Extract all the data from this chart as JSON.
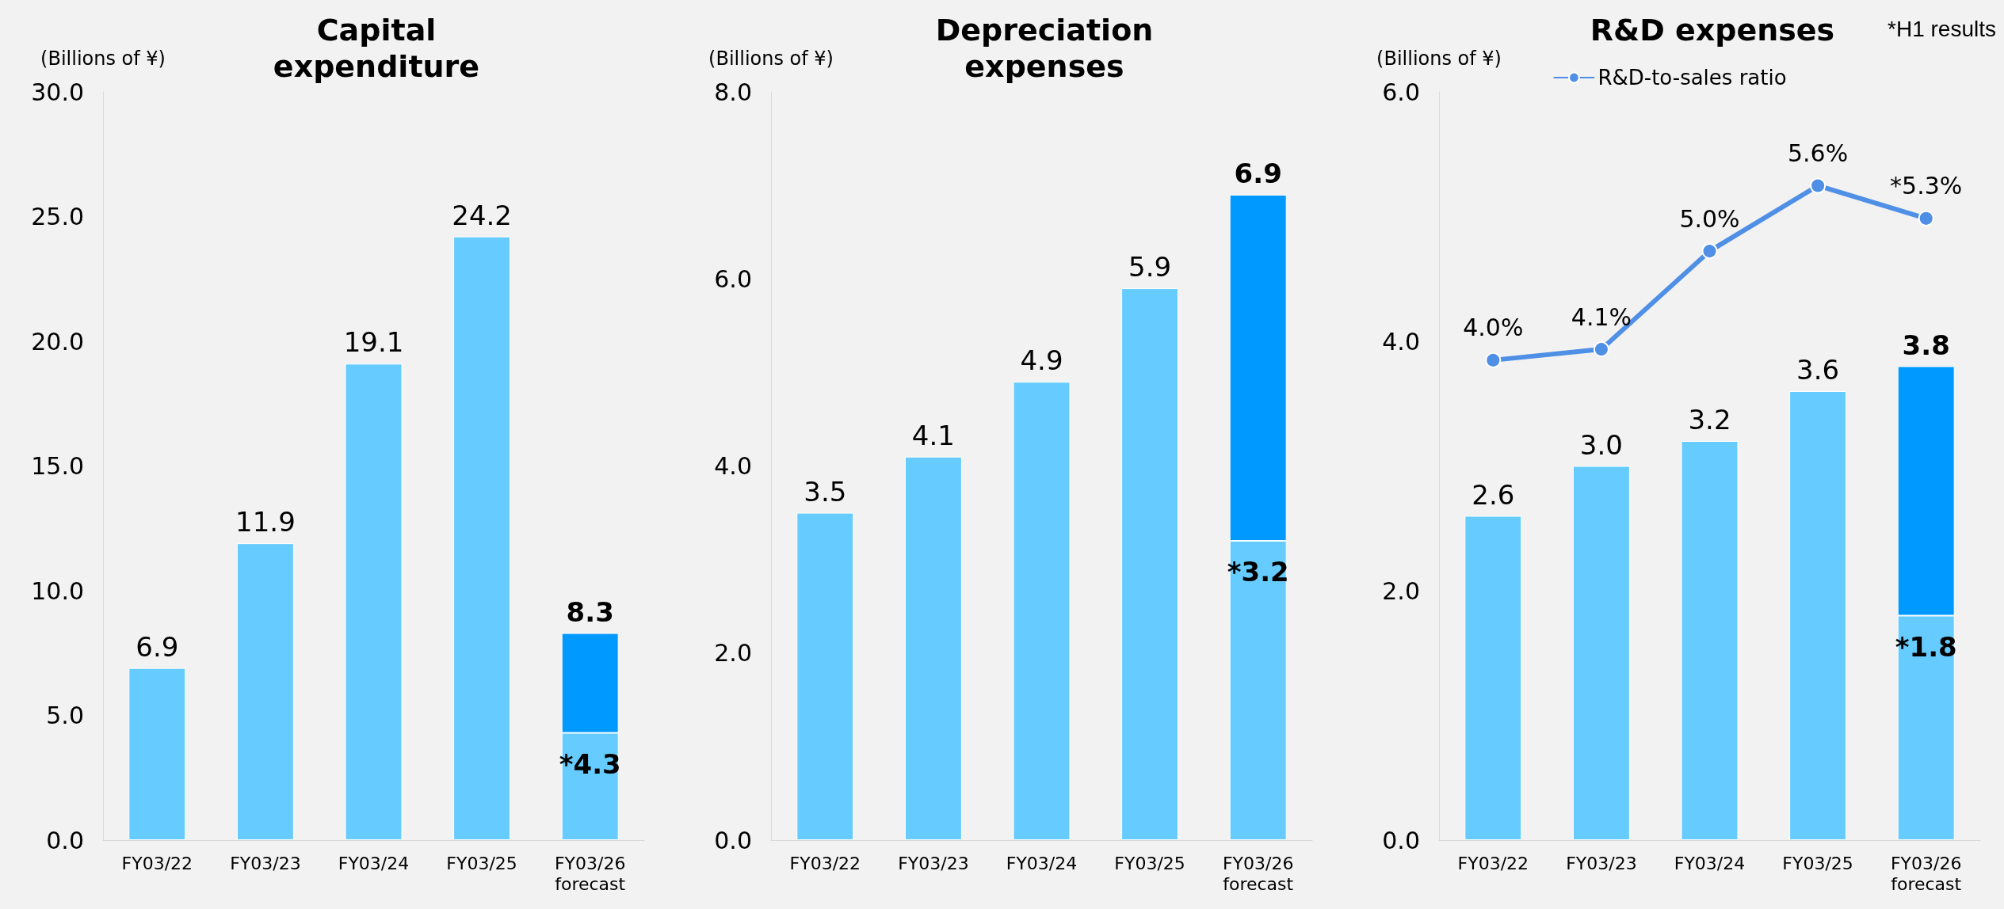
{
  "chart_data": [
    {
      "type": "bar",
      "title": "Capital\nexpenditure",
      "ylabel": "(Billions of ¥)",
      "categories": [
        "FY03/22",
        "FY03/23",
        "FY03/24",
        "FY03/25",
        "FY03/26\nforecast"
      ],
      "ylim": [
        0,
        30
      ],
      "yticks": [
        {
          "value": 0,
          "label": "0.0"
        },
        {
          "value": 5,
          "label": "5.0"
        },
        {
          "value": 10,
          "label": "10.0"
        },
        {
          "value": 15,
          "label": "15.0"
        },
        {
          "value": 20,
          "label": "20.0"
        },
        {
          "value": 25,
          "label": "25.0"
        },
        {
          "value": 30,
          "label": "30.0"
        }
      ],
      "stacked": true,
      "series": [
        {
          "color": "#66ccff",
          "values": [
            6.9,
            11.9,
            19.1,
            24.2,
            4.3
          ],
          "value_labels": [
            "6.9",
            "11.9",
            "19.1",
            "24.2",
            "*4.3"
          ]
        },
        {
          "color": "#0099ff",
          "values": [
            null,
            null,
            null,
            null,
            4.0
          ]
        }
      ],
      "totals": [
        null,
        null,
        null,
        null,
        "8.3"
      ]
    },
    {
      "type": "bar",
      "title": "Depreciation\nexpenses",
      "ylabel": "(Billions of ¥)",
      "categories": [
        "FY03/22",
        "FY03/23",
        "FY03/24",
        "FY03/25",
        "FY03/26\nforecast"
      ],
      "ylim": [
        0,
        8
      ],
      "yticks": [
        {
          "value": 0,
          "label": "0.0"
        },
        {
          "value": 2,
          "label": "2.0"
        },
        {
          "value": 4,
          "label": "4.0"
        },
        {
          "value": 6,
          "label": "6.0"
        },
        {
          "value": 8,
          "label": "8.0"
        }
      ],
      "stacked": true,
      "series": [
        {
          "color": "#66ccff",
          "values": [
            3.5,
            4.1,
            4.9,
            5.9,
            3.2
          ],
          "value_labels": [
            "3.5",
            "4.1",
            "4.9",
            "5.9",
            "*3.2"
          ]
        },
        {
          "color": "#0099ff",
          "values": [
            null,
            null,
            null,
            null,
            3.7
          ]
        }
      ],
      "totals": [
        null,
        null,
        null,
        null,
        "6.9"
      ]
    },
    {
      "type": "bar",
      "title": "R&D expenses",
      "ylabel": "(Billions of ¥)",
      "categories": [
        "FY03/22",
        "FY03/23",
        "FY03/24",
        "FY03/25",
        "FY03/26\nforecast"
      ],
      "ylim": [
        0,
        6
      ],
      "yticks": [
        {
          "value": 0,
          "label": "0.0"
        },
        {
          "value": 2,
          "label": "2.0"
        },
        {
          "value": 4,
          "label": "4.0"
        },
        {
          "value": 6,
          "label": "6.0"
        }
      ],
      "stacked": true,
      "y2lim": [
        -0.4,
        6.46
      ],
      "tick_labels": "xy",
      "legend": "top",
      "marker": "circle",
      "annotations": [
        "*H1 results"
      ],
      "series": [
        {
          "color": "#66ccff",
          "values": [
            2.6,
            3.0,
            3.2,
            3.6,
            1.8
          ],
          "value_labels": [
            "2.6",
            "3.0",
            "3.2",
            "3.6",
            "*1.8"
          ]
        },
        {
          "color": "#0099ff",
          "values": [
            null,
            null,
            null,
            null,
            2.0
          ]
        },
        {
          "type": "line",
          "name": "R&D-to-sales ratio",
          "axis": "y2",
          "color": "#4f8fe6",
          "values": [
            4.0,
            4.1,
            5.0,
            5.6,
            5.3
          ],
          "value_labels": [
            "4.0%",
            "4.1%",
            "5.0%",
            "5.6%",
            "*5.3%"
          ]
        }
      ],
      "totals": [
        null,
        null,
        null,
        null,
        "3.8"
      ]
    }
  ]
}
